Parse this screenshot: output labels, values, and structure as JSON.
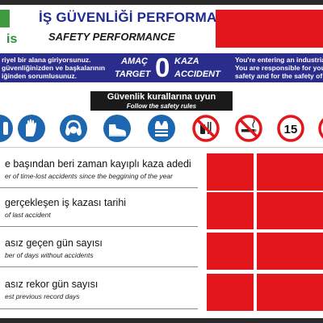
{
  "header": {
    "logo_text": "is",
    "title_tr": "İŞ GÜVENLİĞİ PERFORMANSI",
    "title_en": "SAFETY PERFORMANCE"
  },
  "banner": {
    "left_line1": "riyel bir alana giriyorsunuz.",
    "left_line2": "güvenliğinizden ve başkalarının",
    "left_line3": "iğinden sorumlusunuz.",
    "amac": "AMAÇ",
    "target": "TARGET",
    "zero": "0",
    "kaza": "KAZA",
    "accident": "ACCIDENT",
    "right_line1": "You're entering an industrial",
    "right_line2": "You are responsible for you",
    "right_line3": "safety and for the safety of"
  },
  "rules": {
    "title_tr": "Güvenlik kurallarına uyun",
    "title_en": "Follow the safety rules"
  },
  "signs": [
    {
      "icon": "mandatory-sign-partial-icon"
    },
    {
      "icon": "safety-gloves-icon"
    },
    {
      "icon": "ear-protection-icon"
    },
    {
      "icon": "safety-shoes-icon"
    },
    {
      "icon": "safety-vest-icon"
    },
    {
      "icon": "no-food-drink-icon"
    },
    {
      "icon": "no-smoking-icon"
    },
    {
      "icon": "speed-limit-icon",
      "value": "15"
    },
    {
      "icon": "prohibition-sign-partial-icon"
    }
  ],
  "rows": [
    {
      "tr": "e başından beri zaman kayıplı kaza adedi",
      "en": "er of time-lost accidents since the beggining of the year"
    },
    {
      "tr": "gerçekleşen iş kazası tarihi",
      "en": "of last accident"
    },
    {
      "tr": "asız geçen gün sayısı",
      "en": "ber of days without accidents"
    },
    {
      "tr": "asız rekor gün sayısı",
      "en": "est previous record days"
    }
  ],
  "colors": {
    "navy": "#2a2d8c",
    "title_blue": "#1f2a8f",
    "red": "#e3161c",
    "mandatory_blue": "#1d67b1",
    "green": "#3f9b3f"
  }
}
